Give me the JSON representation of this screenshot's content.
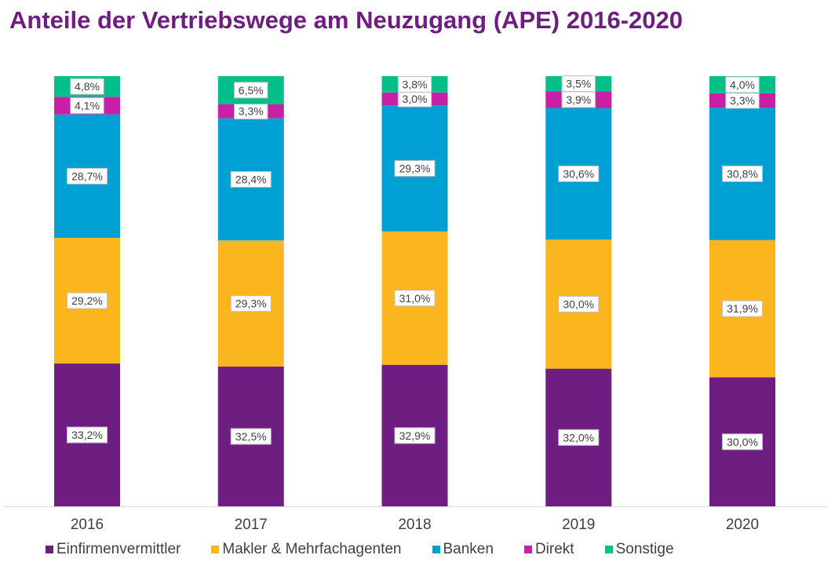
{
  "chart_data": {
    "type": "bar",
    "stacked": true,
    "title": "Anteile der Vertriebswege am Neuzugang (APE) 2016-2020",
    "categories": [
      "2016",
      "2017",
      "2018",
      "2019",
      "2020"
    ],
    "series": [
      {
        "name": "Einfirmenvermittler",
        "color": "#6e1e80",
        "values": [
          33.2,
          32.5,
          32.9,
          32.0,
          30.0
        ],
        "labels": [
          "33,2%",
          "32,5%",
          "32,9%",
          "32,0%",
          "30,0%"
        ]
      },
      {
        "name": "Makler & Mehrfachagenten",
        "color": "#fbb51d",
        "values": [
          29.2,
          29.3,
          31.0,
          30.0,
          31.9
        ],
        "labels": [
          "29,2%",
          "29,3%",
          "31,0%",
          "30,0%",
          "31,9%"
        ]
      },
      {
        "name": "Banken",
        "color": "#009fd4",
        "values": [
          28.7,
          28.4,
          29.3,
          30.6,
          30.8
        ],
        "labels": [
          "28,7%",
          "28,4%",
          "29,3%",
          "30,6%",
          "30,8%"
        ]
      },
      {
        "name": "Direkt",
        "color": "#c91fa4",
        "values": [
          4.1,
          3.3,
          3.0,
          3.9,
          3.3
        ],
        "labels": [
          "4,1%",
          "3,3%",
          "3,0%",
          "3,9%",
          "3,3%"
        ]
      },
      {
        "name": "Sonstige",
        "color": "#00c08a",
        "values": [
          4.8,
          6.5,
          3.8,
          3.5,
          4.0
        ],
        "labels": [
          "4,8%",
          "6,5%",
          "3,8%",
          "3,5%",
          "4,0%"
        ]
      }
    ],
    "ylim": [
      0,
      100
    ],
    "grid": false,
    "legend_position": "bottom"
  }
}
